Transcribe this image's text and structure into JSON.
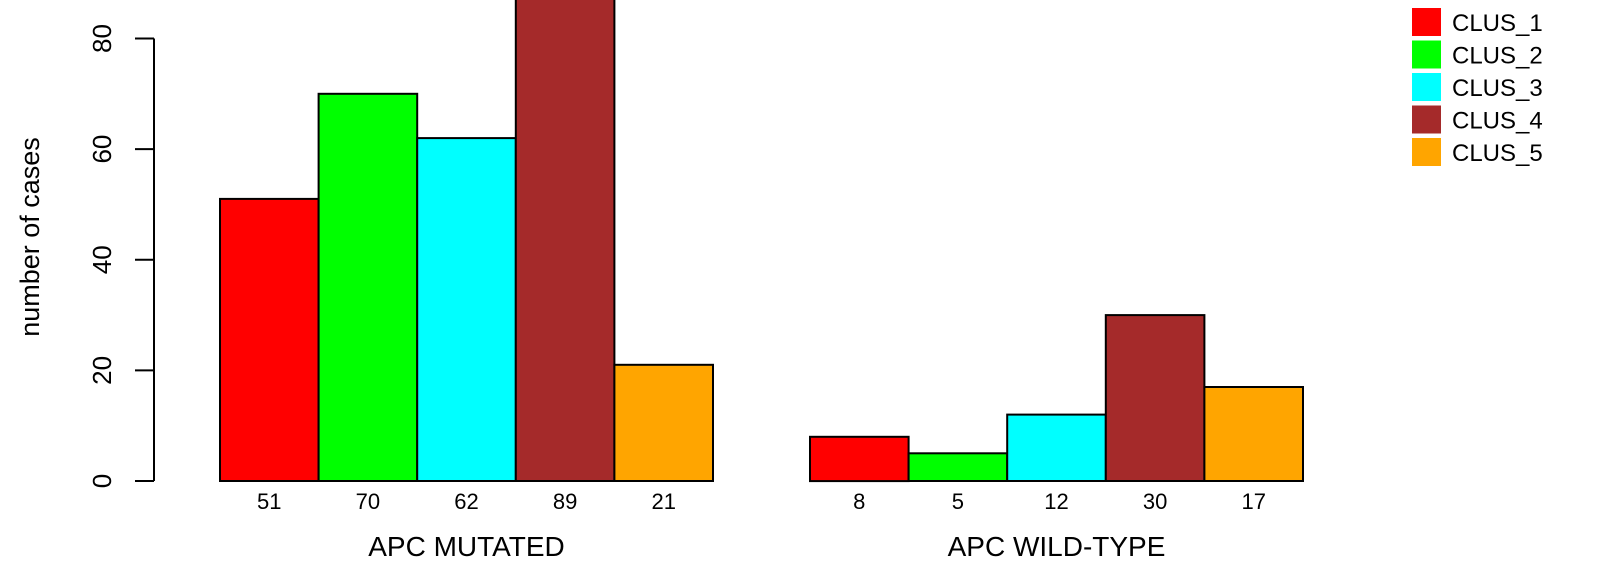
{
  "chart_data": {
    "type": "bar",
    "ylabel": "number of cases",
    "ylim": [
      0,
      87
    ],
    "yticks": [
      0,
      20,
      40,
      60,
      80
    ],
    "grid": false,
    "legend_position": "top-right",
    "groups": [
      {
        "label": "APC MUTATED",
        "values": [
          51,
          70,
          62,
          89,
          21
        ]
      },
      {
        "label": "APC WILD-TYPE",
        "values": [
          8,
          5,
          12,
          30,
          17
        ]
      }
    ],
    "series": [
      {
        "name": "CLUS_1",
        "color": "#ff0000"
      },
      {
        "name": "CLUS_2",
        "color": "#00ff00"
      },
      {
        "name": "CLUS_3",
        "color": "#00ffff"
      },
      {
        "name": "CLUS_4",
        "color": "#a52a2a"
      },
      {
        "name": "CLUS_5",
        "color": "#ffa500"
      }
    ]
  }
}
